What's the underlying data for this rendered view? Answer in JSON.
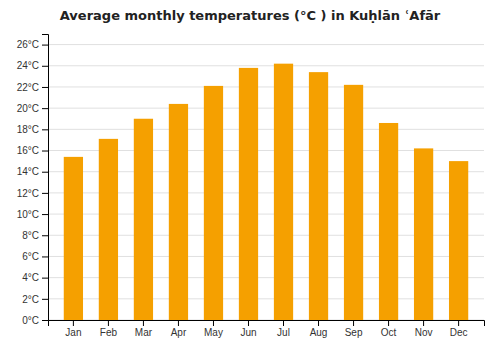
{
  "chart_data": {
    "type": "bar",
    "title": "Average monthly temperatures (°C ) in Kuḥlān ʿAfār",
    "categories": [
      "Jan",
      "Feb",
      "Mar",
      "Apr",
      "May",
      "Jun",
      "Jul",
      "Aug",
      "Sep",
      "Oct",
      "Nov",
      "Dec"
    ],
    "values": [
      15.4,
      17.1,
      19.0,
      20.4,
      22.1,
      23.8,
      24.2,
      23.4,
      22.2,
      18.6,
      16.2,
      15.0
    ],
    "color": "#F5A000",
    "ylim": [
      0,
      27
    ],
    "yticks": [
      {
        "value": 0,
        "label": "0°C"
      },
      {
        "value": 2,
        "label": "2°C"
      },
      {
        "value": 4,
        "label": "4°C"
      },
      {
        "value": 6,
        "label": "6°C"
      },
      {
        "value": 8,
        "label": "8°C"
      },
      {
        "value": 10,
        "label": "10°C"
      },
      {
        "value": 12,
        "label": "12°C"
      },
      {
        "value": 14,
        "label": "14°C"
      },
      {
        "value": 16,
        "label": "16°C"
      },
      {
        "value": 18,
        "label": "18°C"
      },
      {
        "value": 20,
        "label": "20°C"
      },
      {
        "value": 22,
        "label": "22°C"
      },
      {
        "value": 24,
        "label": "24°C"
      },
      {
        "value": 26,
        "label": "26°C"
      }
    ],
    "grid": true
  }
}
